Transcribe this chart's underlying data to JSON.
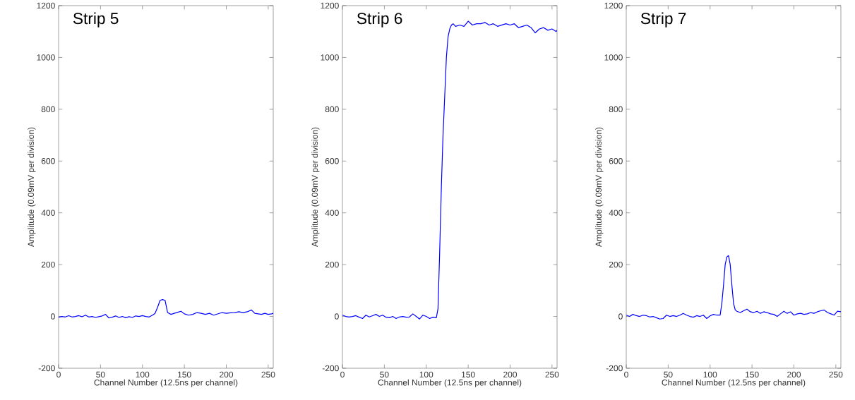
{
  "chart_data": [
    {
      "type": "line",
      "title": "Strip 5",
      "xlabel": "Channel Number (12.5ns per channel)",
      "ylabel": "Amplitude (0.09mV per division)",
      "color": "#0000ff",
      "xlim": [
        0,
        256
      ],
      "ylim": [
        -200,
        1200
      ],
      "xticks": [
        0,
        50,
        100,
        150,
        200,
        250
      ],
      "yticks": [
        -200,
        0,
        200,
        400,
        600,
        800,
        1000,
        1200
      ],
      "x": [
        0,
        4,
        8,
        12,
        16,
        20,
        24,
        28,
        32,
        36,
        40,
        44,
        48,
        52,
        56,
        60,
        64,
        68,
        72,
        76,
        80,
        84,
        88,
        92,
        96,
        100,
        104,
        108,
        112,
        115,
        118,
        121,
        124,
        127,
        130,
        134,
        138,
        142,
        146,
        150,
        155,
        160,
        165,
        170,
        175,
        180,
        185,
        190,
        195,
        200,
        205,
        210,
        215,
        220,
        225,
        230,
        234,
        238,
        242,
        246,
        250,
        254,
        256
      ],
      "values": [
        -3,
        0,
        -2,
        3,
        -2,
        0,
        3,
        -1,
        5,
        -2,
        0,
        -4,
        -1,
        2,
        8,
        -6,
        -3,
        2,
        -4,
        0,
        -5,
        -1,
        -4,
        2,
        0,
        3,
        0,
        -2,
        5,
        12,
        35,
        62,
        65,
        62,
        15,
        8,
        12,
        16,
        20,
        10,
        5,
        8,
        15,
        12,
        8,
        12,
        5,
        10,
        15,
        12,
        14,
        15,
        18,
        15,
        18,
        25,
        12,
        10,
        8,
        12,
        8,
        10,
        12
      ]
    },
    {
      "type": "line",
      "title": "Strip 6",
      "xlabel": "Channel Number (12.5ns per channel)",
      "ylabel": "Amplitude (0.09mV per division)",
      "color": "#0000ff",
      "xlim": [
        0,
        256
      ],
      "ylim": [
        -200,
        1200
      ],
      "xticks": [
        0,
        50,
        100,
        150,
        200,
        250
      ],
      "yticks": [
        -200,
        0,
        200,
        400,
        600,
        800,
        1000,
        1200
      ],
      "x": [
        0,
        4,
        8,
        12,
        16,
        20,
        24,
        28,
        32,
        36,
        40,
        44,
        48,
        52,
        56,
        60,
        64,
        68,
        72,
        76,
        80,
        84,
        88,
        92,
        96,
        100,
        104,
        108,
        112,
        114,
        116,
        118,
        120,
        122,
        124,
        126,
        128,
        130,
        132,
        135,
        140,
        145,
        150,
        155,
        160,
        165,
        170,
        175,
        180,
        185,
        190,
        195,
        200,
        205,
        210,
        215,
        220,
        225,
        230,
        235,
        240,
        245,
        250,
        255,
        256
      ],
      "values": [
        5,
        0,
        -2,
        0,
        3,
        -3,
        -8,
        5,
        -2,
        3,
        8,
        0,
        5,
        -3,
        -5,
        0,
        -8,
        -2,
        0,
        -3,
        -2,
        10,
        0,
        -10,
        5,
        0,
        -8,
        -3,
        -5,
        30,
        250,
        500,
        700,
        850,
        1000,
        1080,
        1110,
        1125,
        1130,
        1120,
        1125,
        1120,
        1140,
        1125,
        1130,
        1130,
        1135,
        1125,
        1130,
        1120,
        1125,
        1130,
        1125,
        1130,
        1115,
        1120,
        1125,
        1115,
        1095,
        1110,
        1115,
        1105,
        1110,
        1100,
        1105
      ]
    },
    {
      "type": "line",
      "title": "Strip 7",
      "xlabel": "Channel Number (12.5ns per channel)",
      "ylabel": "Amplitude (0.09mV per division)",
      "color": "#0000ff",
      "xlim": [
        0,
        256
      ],
      "ylim": [
        -200,
        1200
      ],
      "xticks": [
        0,
        50,
        100,
        150,
        200,
        250
      ],
      "yticks": [
        -200,
        0,
        200,
        400,
        600,
        800,
        1000,
        1200
      ],
      "x": [
        0,
        4,
        8,
        12,
        16,
        20,
        24,
        28,
        32,
        36,
        40,
        44,
        48,
        52,
        56,
        60,
        64,
        68,
        72,
        76,
        80,
        84,
        88,
        92,
        96,
        100,
        104,
        108,
        112,
        114,
        116,
        118,
        120,
        122,
        124,
        126,
        128,
        130,
        132,
        136,
        140,
        144,
        148,
        152,
        156,
        160,
        164,
        168,
        172,
        176,
        180,
        184,
        188,
        192,
        196,
        200,
        204,
        208,
        212,
        216,
        220,
        224,
        228,
        232,
        236,
        240,
        244,
        248,
        252,
        256
      ],
      "values": [
        5,
        0,
        8,
        3,
        0,
        5,
        3,
        -2,
        0,
        -5,
        -10,
        -8,
        5,
        0,
        3,
        0,
        5,
        12,
        5,
        0,
        -3,
        3,
        0,
        5,
        -8,
        2,
        8,
        5,
        5,
        50,
        120,
        200,
        230,
        235,
        200,
        120,
        50,
        25,
        20,
        15,
        22,
        28,
        18,
        15,
        20,
        12,
        18,
        15,
        10,
        8,
        0,
        10,
        20,
        12,
        18,
        5,
        10,
        12,
        8,
        10,
        15,
        12,
        18,
        22,
        25,
        15,
        10,
        5,
        20,
        18
      ]
    }
  ]
}
